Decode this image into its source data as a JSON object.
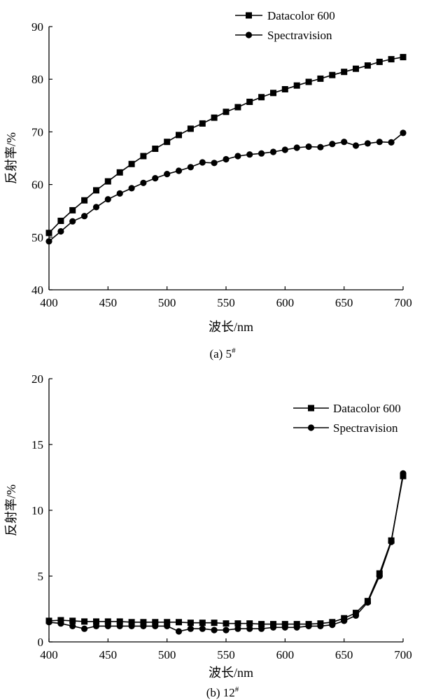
{
  "chart_data": [
    {
      "type": "line",
      "caption": "(a) 5",
      "caption_sup": "#",
      "xlabel": "波长/nm",
      "ylabel": "反射率/%",
      "xlim": [
        400,
        700
      ],
      "ylim": [
        40,
        90
      ],
      "xticks": [
        400,
        450,
        500,
        550,
        600,
        650,
        700
      ],
      "yticks": [
        40,
        50,
        60,
        70,
        80,
        90
      ],
      "legend_position": "top-right",
      "x": [
        400,
        410,
        420,
        430,
        440,
        450,
        460,
        470,
        480,
        490,
        500,
        510,
        520,
        530,
        540,
        550,
        560,
        570,
        580,
        590,
        600,
        610,
        620,
        630,
        640,
        650,
        660,
        670,
        680,
        690,
        700
      ],
      "series": [
        {
          "name": "Datacolor 600",
          "marker": "square",
          "values": [
            50.8,
            53.1,
            55.1,
            57.0,
            58.9,
            60.6,
            62.3,
            63.9,
            65.4,
            66.8,
            68.1,
            69.4,
            70.6,
            71.6,
            72.7,
            73.8,
            74.7,
            75.7,
            76.6,
            77.4,
            78.1,
            78.8,
            79.5,
            80.1,
            80.8,
            81.4,
            82.0,
            82.6,
            83.3,
            83.8,
            84.2
          ]
        },
        {
          "name": "Spectravision",
          "marker": "circle",
          "values": [
            49.2,
            51.1,
            53.0,
            54.0,
            55.7,
            57.2,
            58.3,
            59.3,
            60.3,
            61.2,
            62.0,
            62.6,
            63.3,
            64.2,
            64.1,
            64.8,
            65.4,
            65.7,
            65.9,
            66.2,
            66.6,
            67.0,
            67.2,
            67.1,
            67.7,
            68.1,
            67.4,
            67.8,
            68.1,
            68.0,
            69.8
          ]
        }
      ]
    },
    {
      "type": "line",
      "caption": "(b) 12",
      "caption_sup": "#",
      "xlabel": "波长/nm",
      "ylabel": "反射率/%",
      "xlim": [
        400,
        700
      ],
      "ylim": [
        0,
        20
      ],
      "xticks": [
        400,
        450,
        500,
        550,
        600,
        650,
        700
      ],
      "yticks": [
        0,
        5,
        10,
        15,
        20
      ],
      "legend_position": "top-right",
      "x": [
        400,
        410,
        420,
        430,
        440,
        450,
        460,
        470,
        480,
        490,
        500,
        510,
        520,
        530,
        540,
        550,
        560,
        570,
        580,
        590,
        600,
        610,
        620,
        630,
        640,
        650,
        660,
        670,
        680,
        690,
        700
      ],
      "series": [
        {
          "name": "Datacolor 600",
          "marker": "square",
          "values": [
            1.6,
            1.65,
            1.6,
            1.55,
            1.55,
            1.55,
            1.55,
            1.5,
            1.5,
            1.5,
            1.5,
            1.5,
            1.45,
            1.45,
            1.45,
            1.4,
            1.4,
            1.4,
            1.35,
            1.35,
            1.35,
            1.35,
            1.35,
            1.4,
            1.5,
            1.8,
            2.2,
            3.1,
            5.2,
            7.7,
            12.6
          ]
        },
        {
          "name": "Spectravision",
          "marker": "circle",
          "values": [
            1.5,
            1.4,
            1.2,
            1.0,
            1.2,
            1.2,
            1.2,
            1.2,
            1.2,
            1.2,
            1.2,
            0.8,
            1.0,
            1.0,
            0.9,
            0.9,
            1.0,
            1.0,
            1.0,
            1.1,
            1.1,
            1.1,
            1.2,
            1.2,
            1.3,
            1.6,
            2.0,
            3.0,
            5.0,
            7.6,
            12.8
          ]
        }
      ]
    }
  ]
}
